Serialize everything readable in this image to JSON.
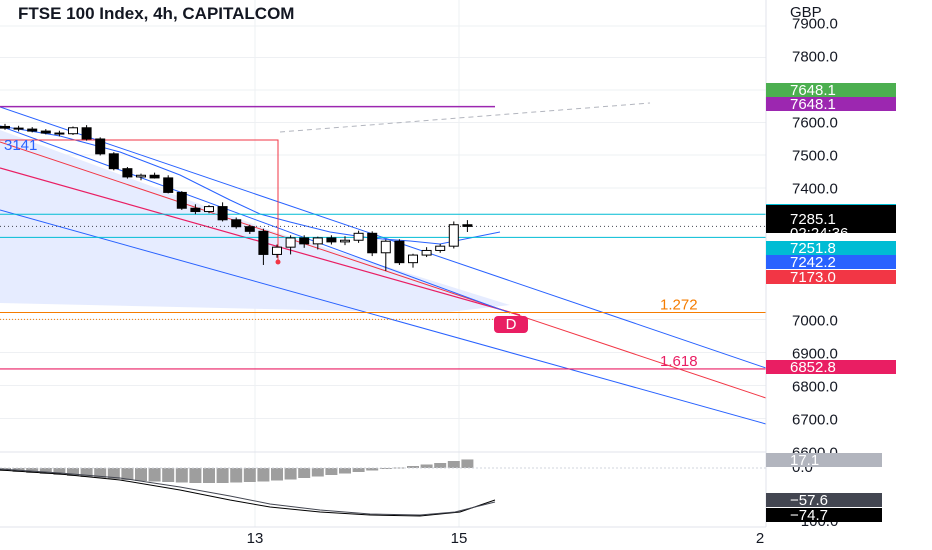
{
  "chart_data": {
    "type": "candlestick",
    "title": "FTSE 100 Index, 4h, CAPITALCOM",
    "currency": "GBP",
    "price_ticks": [
      7900,
      7800,
      7600,
      7500,
      7400,
      7000,
      6900,
      6800,
      6700,
      6600
    ],
    "price_tick_labels": [
      "7900.0",
      "7800.0",
      "7600.0",
      "7500.0",
      "7400.0",
      "7000.0",
      "6900.0",
      "6800.0",
      "6700.0",
      "6600.0"
    ],
    "time_labels": [
      "13",
      "15",
      "2"
    ],
    "candles": [
      {
        "o": 7588,
        "h": 7596,
        "l": 7578,
        "c": 7583
      },
      {
        "o": 7583,
        "h": 7590,
        "l": 7573,
        "c": 7580
      },
      {
        "o": 7580,
        "h": 7586,
        "l": 7570,
        "c": 7574
      },
      {
        "o": 7574,
        "h": 7580,
        "l": 7564,
        "c": 7568
      },
      {
        "o": 7568,
        "h": 7575,
        "l": 7558,
        "c": 7566
      },
      {
        "o": 7566,
        "h": 7588,
        "l": 7562,
        "c": 7584
      },
      {
        "o": 7584,
        "h": 7592,
        "l": 7545,
        "c": 7550
      },
      {
        "o": 7550,
        "h": 7555,
        "l": 7500,
        "c": 7505
      },
      {
        "o": 7505,
        "h": 7510,
        "l": 7455,
        "c": 7460
      },
      {
        "o": 7460,
        "h": 7465,
        "l": 7430,
        "c": 7435
      },
      {
        "o": 7435,
        "h": 7445,
        "l": 7425,
        "c": 7440
      },
      {
        "o": 7440,
        "h": 7448,
        "l": 7430,
        "c": 7432
      },
      {
        "o": 7432,
        "h": 7440,
        "l": 7385,
        "c": 7388
      },
      {
        "o": 7388,
        "h": 7392,
        "l": 7335,
        "c": 7340
      },
      {
        "o": 7340,
        "h": 7352,
        "l": 7322,
        "c": 7330
      },
      {
        "o": 7330,
        "h": 7350,
        "l": 7325,
        "c": 7345
      },
      {
        "o": 7345,
        "h": 7358,
        "l": 7300,
        "c": 7305
      },
      {
        "o": 7305,
        "h": 7312,
        "l": 7278,
        "c": 7284
      },
      {
        "o": 7284,
        "h": 7290,
        "l": 7262,
        "c": 7270
      },
      {
        "o": 7270,
        "h": 7278,
        "l": 7168,
        "c": 7200
      },
      {
        "o": 7200,
        "h": 7230,
        "l": 7190,
        "c": 7222
      },
      {
        "o": 7222,
        "h": 7258,
        "l": 7200,
        "c": 7250
      },
      {
        "o": 7250,
        "h": 7258,
        "l": 7220,
        "c": 7232
      },
      {
        "o": 7232,
        "h": 7254,
        "l": 7215,
        "c": 7250
      },
      {
        "o": 7250,
        "h": 7258,
        "l": 7230,
        "c": 7238
      },
      {
        "o": 7238,
        "h": 7255,
        "l": 7228,
        "c": 7243
      },
      {
        "o": 7243,
        "h": 7272,
        "l": 7235,
        "c": 7264
      },
      {
        "o": 7264,
        "h": 7270,
        "l": 7195,
        "c": 7205
      },
      {
        "o": 7205,
        "h": 7245,
        "l": 7150,
        "c": 7240
      },
      {
        "o": 7240,
        "h": 7246,
        "l": 7168,
        "c": 7175
      },
      {
        "o": 7175,
        "h": 7202,
        "l": 7160,
        "c": 7198
      },
      {
        "o": 7198,
        "h": 7222,
        "l": 7192,
        "c": 7212
      },
      {
        "o": 7212,
        "h": 7232,
        "l": 7205,
        "c": 7225
      },
      {
        "o": 7225,
        "h": 7300,
        "l": 7218,
        "c": 7290
      },
      {
        "o": 7290,
        "h": 7304,
        "l": 7268,
        "c": 7285
      }
    ],
    "price_tags": [
      {
        "label": "7648.1",
        "value": 7648.1,
        "color": "#4caf50"
      },
      {
        "label": "7648.1",
        "value": 7648.1,
        "color": "#9c27b0"
      },
      {
        "label": "7321.7",
        "value": 7321.7,
        "color": "#00bcd4"
      },
      {
        "label": "7285.1",
        "value": 7285.1,
        "color": "#000000"
      },
      {
        "label": "7251.8",
        "value": 7251.8,
        "color": "#00bcd4"
      },
      {
        "label": "7242.2",
        "value": 7242.2,
        "color": "#2962ff"
      },
      {
        "label": "7173.0",
        "value": 7173.0,
        "color": "#f23645"
      },
      {
        "label": "6852.8",
        "value": 6852.8,
        "color": "#e91e63"
      }
    ],
    "countdown": "02:24:36",
    "pattern_label": "D",
    "fib_labels": [
      {
        "label": "1.272",
        "value": 7024,
        "color": "#f57c00"
      },
      {
        "label": "1.618",
        "value": 6852.8,
        "color": "#e91e63"
      }
    ],
    "partial_left_label": "3141",
    "oscillator": {
      "tick_labels": [
        "0.0",
        "−100.0"
      ],
      "tags": [
        {
          "label": "17.1",
          "color": "#b2b5be",
          "text_color": "#131722"
        },
        {
          "label": "−57.6",
          "color": "#434651",
          "text_color": "#ffffff"
        },
        {
          "label": "−74.7",
          "color": "#000000",
          "text_color": "#ffffff"
        }
      ],
      "histogram": [
        -6,
        -8,
        -10,
        -12,
        -14,
        -16,
        -18,
        -20,
        -22,
        -24,
        -26,
        -27,
        -28,
        -29,
        -30,
        -30,
        -30,
        -29,
        -28,
        -27,
        -25,
        -23,
        -20,
        -17,
        -14,
        -11,
        -8,
        -5,
        -2,
        1,
        4,
        7,
        10,
        14,
        17.1
      ]
    },
    "colors": {
      "up": "#ffffff",
      "down": "#000000",
      "wick": "#000000",
      "channel": "#2962ff",
      "channel_fill": "#e3eaff",
      "red": "#f23645",
      "orange": "#f57c00",
      "magenta": "#e91e63",
      "purple": "#9c27b0",
      "cyan": "#00bcd4",
      "grid": "#eef0f3"
    }
  }
}
